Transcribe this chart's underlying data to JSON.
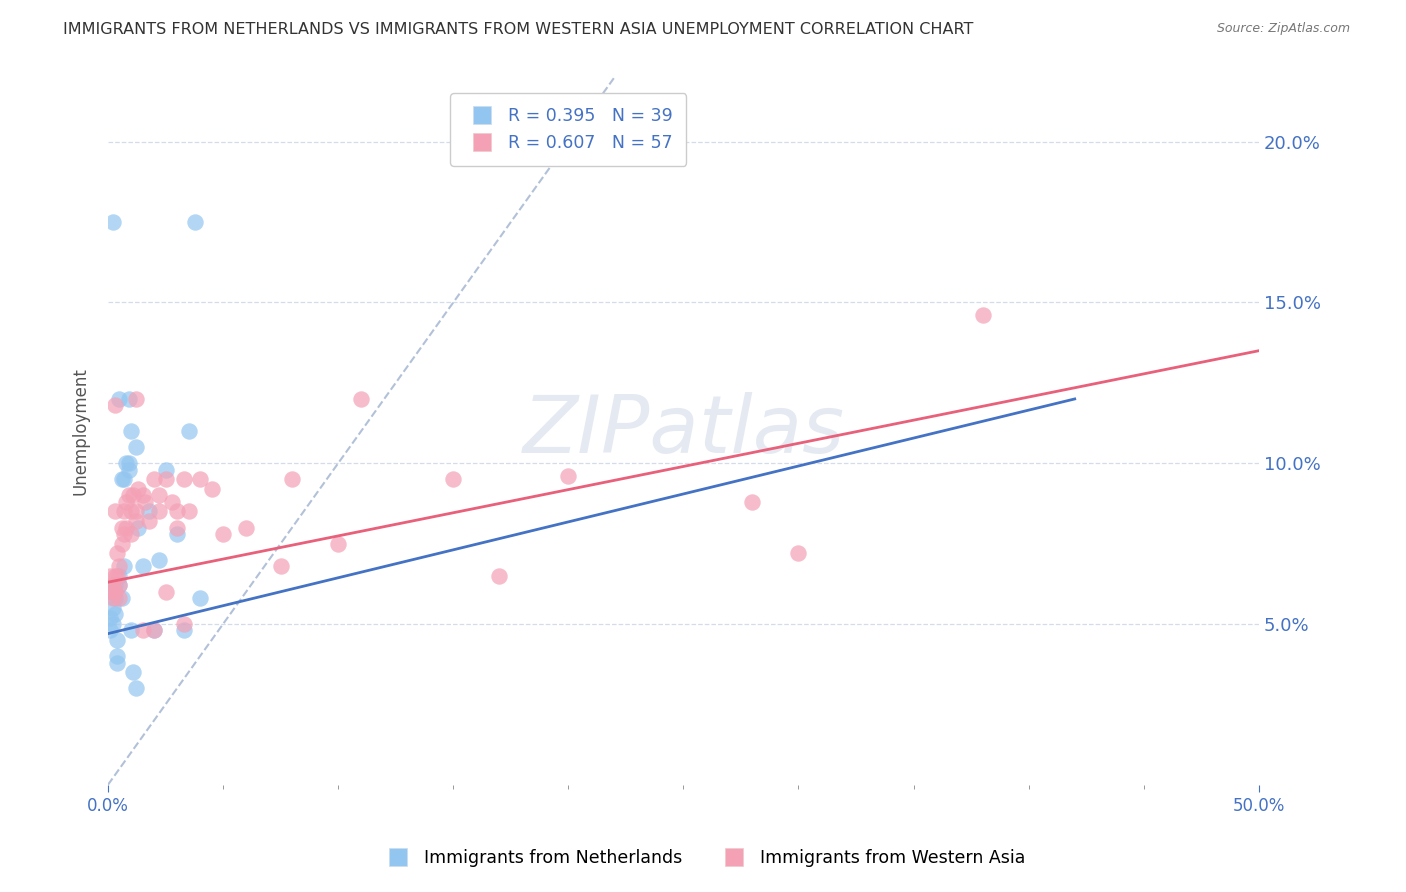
{
  "title": "IMMIGRANTS FROM NETHERLANDS VS IMMIGRANTS FROM WESTERN ASIA UNEMPLOYMENT CORRELATION CHART",
  "source": "Source: ZipAtlas.com",
  "ylabel": "Unemployment",
  "xlim": [
    0.0,
    0.5
  ],
  "ylim": [
    0.0,
    0.22
  ],
  "yticks": [
    0.05,
    0.1,
    0.15,
    0.2
  ],
  "xtick_labels_positions": [
    0.0,
    0.5
  ],
  "xtick_labels": [
    "0.0%",
    "50.0%"
  ],
  "xtick_minor_positions": [
    0.05,
    0.1,
    0.15,
    0.2,
    0.25,
    0.3,
    0.35,
    0.4,
    0.45
  ],
  "watermark": "ZIPatlas",
  "legend_r1": "R = 0.395",
  "legend_n1": "N = 39",
  "legend_r2": "R = 0.607",
  "legend_n2": "N = 57",
  "legend_label1": "Immigrants from Netherlands",
  "legend_label2": "Immigrants from Western Asia",
  "blue_color": "#92C5F0",
  "pink_color": "#F4A0B5",
  "blue_line_color": "#4472C4",
  "pink_line_color": "#E8607A",
  "axis_label_color": "#4472C4",
  "title_color": "#333333",
  "blue_scatter": [
    [
      0.001,
      0.052
    ],
    [
      0.001,
      0.048
    ],
    [
      0.002,
      0.055
    ],
    [
      0.002,
      0.05
    ],
    [
      0.002,
      0.06
    ],
    [
      0.003,
      0.053
    ],
    [
      0.003,
      0.062
    ],
    [
      0.003,
      0.058
    ],
    [
      0.004,
      0.045
    ],
    [
      0.004,
      0.04
    ],
    [
      0.004,
      0.038
    ],
    [
      0.005,
      0.062
    ],
    [
      0.005,
      0.065
    ],
    [
      0.006,
      0.058
    ],
    [
      0.006,
      0.095
    ],
    [
      0.007,
      0.095
    ],
    [
      0.007,
      0.068
    ],
    [
      0.008,
      0.1
    ],
    [
      0.009,
      0.1
    ],
    [
      0.009,
      0.098
    ],
    [
      0.01,
      0.048
    ],
    [
      0.011,
      0.035
    ],
    [
      0.012,
      0.03
    ],
    [
      0.013,
      0.08
    ],
    [
      0.015,
      0.068
    ],
    [
      0.018,
      0.085
    ],
    [
      0.02,
      0.048
    ],
    [
      0.022,
      0.07
    ],
    [
      0.025,
      0.098
    ],
    [
      0.03,
      0.078
    ],
    [
      0.033,
      0.048
    ],
    [
      0.035,
      0.11
    ],
    [
      0.038,
      0.175
    ],
    [
      0.04,
      0.058
    ],
    [
      0.002,
      0.175
    ],
    [
      0.005,
      0.12
    ],
    [
      0.009,
      0.12
    ],
    [
      0.01,
      0.11
    ],
    [
      0.012,
      0.105
    ]
  ],
  "pink_scatter": [
    [
      0.001,
      0.065
    ],
    [
      0.001,
      0.06
    ],
    [
      0.002,
      0.062
    ],
    [
      0.002,
      0.058
    ],
    [
      0.003,
      0.065
    ],
    [
      0.003,
      0.06
    ],
    [
      0.004,
      0.072
    ],
    [
      0.004,
      0.065
    ],
    [
      0.005,
      0.068
    ],
    [
      0.005,
      0.062
    ],
    [
      0.005,
      0.058
    ],
    [
      0.006,
      0.08
    ],
    [
      0.006,
      0.075
    ],
    [
      0.007,
      0.085
    ],
    [
      0.007,
      0.078
    ],
    [
      0.008,
      0.088
    ],
    [
      0.008,
      0.08
    ],
    [
      0.009,
      0.09
    ],
    [
      0.01,
      0.085
    ],
    [
      0.01,
      0.078
    ],
    [
      0.011,
      0.09
    ],
    [
      0.012,
      0.085
    ],
    [
      0.012,
      0.082
    ],
    [
      0.013,
      0.092
    ],
    [
      0.015,
      0.09
    ],
    [
      0.015,
      0.048
    ],
    [
      0.016,
      0.088
    ],
    [
      0.018,
      0.082
    ],
    [
      0.02,
      0.095
    ],
    [
      0.02,
      0.048
    ],
    [
      0.022,
      0.09
    ],
    [
      0.022,
      0.085
    ],
    [
      0.025,
      0.095
    ],
    [
      0.025,
      0.06
    ],
    [
      0.028,
      0.088
    ],
    [
      0.03,
      0.085
    ],
    [
      0.03,
      0.08
    ],
    [
      0.033,
      0.095
    ],
    [
      0.033,
      0.05
    ],
    [
      0.035,
      0.085
    ],
    [
      0.04,
      0.095
    ],
    [
      0.045,
      0.092
    ],
    [
      0.05,
      0.078
    ],
    [
      0.06,
      0.08
    ],
    [
      0.075,
      0.068
    ],
    [
      0.08,
      0.095
    ],
    [
      0.1,
      0.075
    ],
    [
      0.11,
      0.12
    ],
    [
      0.15,
      0.095
    ],
    [
      0.17,
      0.065
    ],
    [
      0.2,
      0.096
    ],
    [
      0.28,
      0.088
    ],
    [
      0.3,
      0.072
    ],
    [
      0.003,
      0.118
    ],
    [
      0.012,
      0.12
    ],
    [
      0.38,
      0.146
    ],
    [
      0.003,
      0.085
    ]
  ],
  "blue_trendline": {
    "x_start": 0.0,
    "y_start": 0.047,
    "x_end": 0.42,
    "y_end": 0.12
  },
  "pink_trendline": {
    "x_start": 0.0,
    "y_start": 0.063,
    "x_end": 0.5,
    "y_end": 0.135
  },
  "diagonal_line": {
    "x_start": 0.0,
    "y_start": 0.0,
    "x_end": 0.22,
    "y_end": 0.22
  }
}
